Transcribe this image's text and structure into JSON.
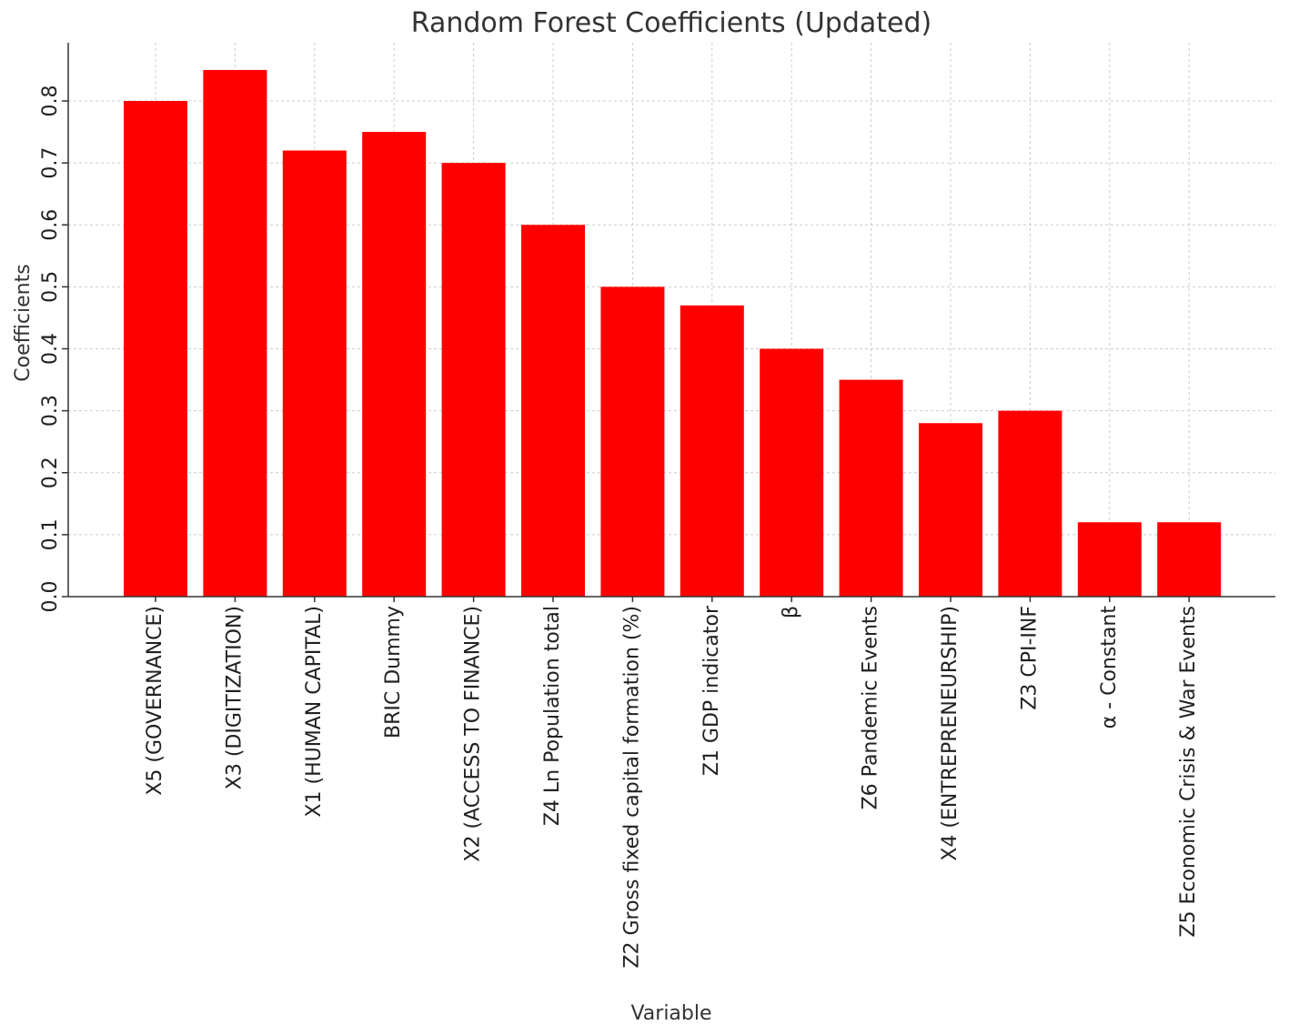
{
  "chart_data": {
    "type": "bar",
    "title": "Random Forest Coefficients (Updated)",
    "xlabel": "Variable",
    "ylabel": "Coefficients",
    "categories": [
      "X5 (GOVERNANCE)",
      "X3 (DIGITIZATION)",
      "X1 (HUMAN CAPITAL)",
      "BRIC Dummy",
      "X2 (ACCESS TO FINANCE)",
      "Z4 Ln Population total",
      "Z2 Gross fixed capital formation (%)",
      "Z1 GDP indicator",
      "β",
      "Z6 Pandemic Events",
      "X4 (ENTREPRENEURSHIP)",
      "Z3 CPI-INF",
      "α - Constant",
      "Z5 Economic Crisis & War Events"
    ],
    "values": [
      0.8,
      0.85,
      0.72,
      0.75,
      0.7,
      0.6,
      0.5,
      0.47,
      0.4,
      0.35,
      0.28,
      0.3,
      0.12,
      0.12
    ],
    "yticks": [
      "0.0",
      "0.1",
      "0.2",
      "0.3",
      "0.4",
      "0.5",
      "0.6",
      "0.7",
      "0.8"
    ],
    "ylim": [
      0,
      0.89
    ],
    "grid": true,
    "bar_color": "#ff0000",
    "grid_color": "#cccccc"
  }
}
